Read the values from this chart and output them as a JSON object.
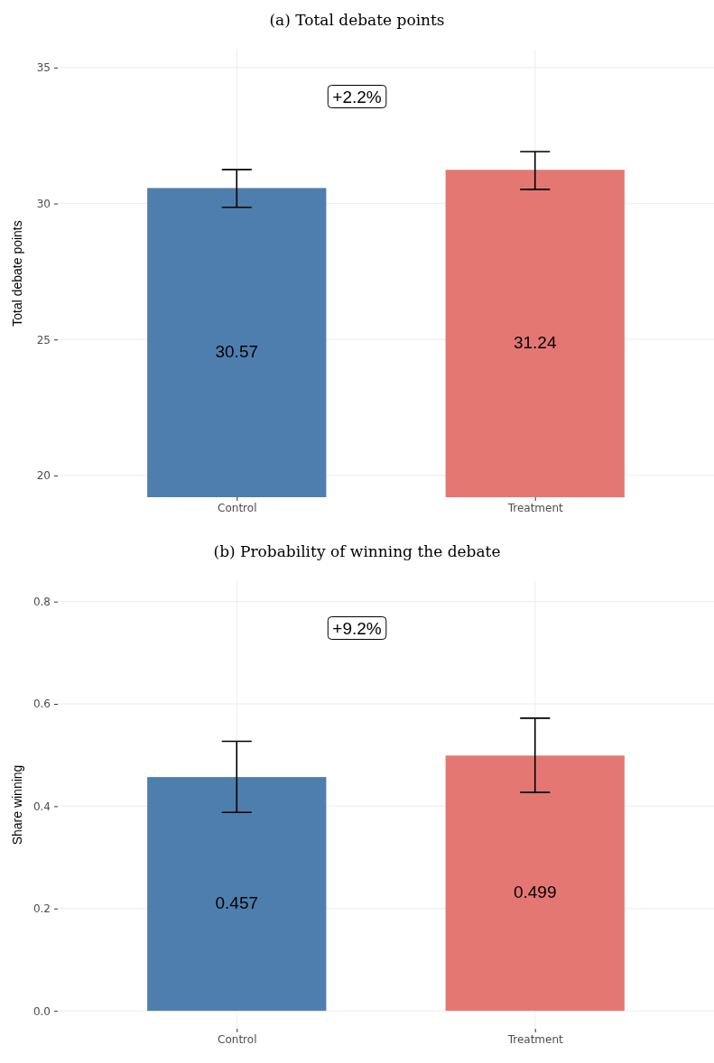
{
  "chart_data": [
    {
      "type": "bar",
      "title": "(a) Total debate points",
      "ylabel": "Total debate points",
      "categories": [
        "Control",
        "Treatment"
      ],
      "values": [
        30.57,
        31.24
      ],
      "colors": [
        "#4e7eae",
        "#e57773"
      ],
      "errors": [
        [
          29.86,
          31.25
        ],
        [
          30.52,
          31.91
        ]
      ],
      "data_labels": true,
      "ylim": [
        19.2,
        35.66
      ],
      "yticks": [
        20,
        25,
        30,
        35
      ],
      "grid": true,
      "annotations": [
        "+2.2%"
      ]
    },
    {
      "type": "bar",
      "title": "(b) Probability of winning the debate",
      "ylabel": "Share winning",
      "categories": [
        "Control",
        "Treatment"
      ],
      "values": [
        0.457,
        0.499
      ],
      "colors": [
        "#4e7eae",
        "#e57773"
      ],
      "errors": [
        [
          0.388,
          0.527
        ],
        [
          0.427,
          0.572
        ]
      ],
      "data_labels": true,
      "ylim": [
        -0.035,
        0.84
      ],
      "yticks": [
        {
          "value": 0,
          "label": "0.0"
        },
        {
          "value": 0.2,
          "label": "0.2"
        },
        {
          "value": 0.4,
          "label": "0.4"
        },
        {
          "value": 0.6,
          "label": "0.6"
        },
        {
          "value": 0.8,
          "label": "0.8"
        }
      ],
      "grid": true,
      "annotations": [
        "+9.2%"
      ]
    }
  ]
}
